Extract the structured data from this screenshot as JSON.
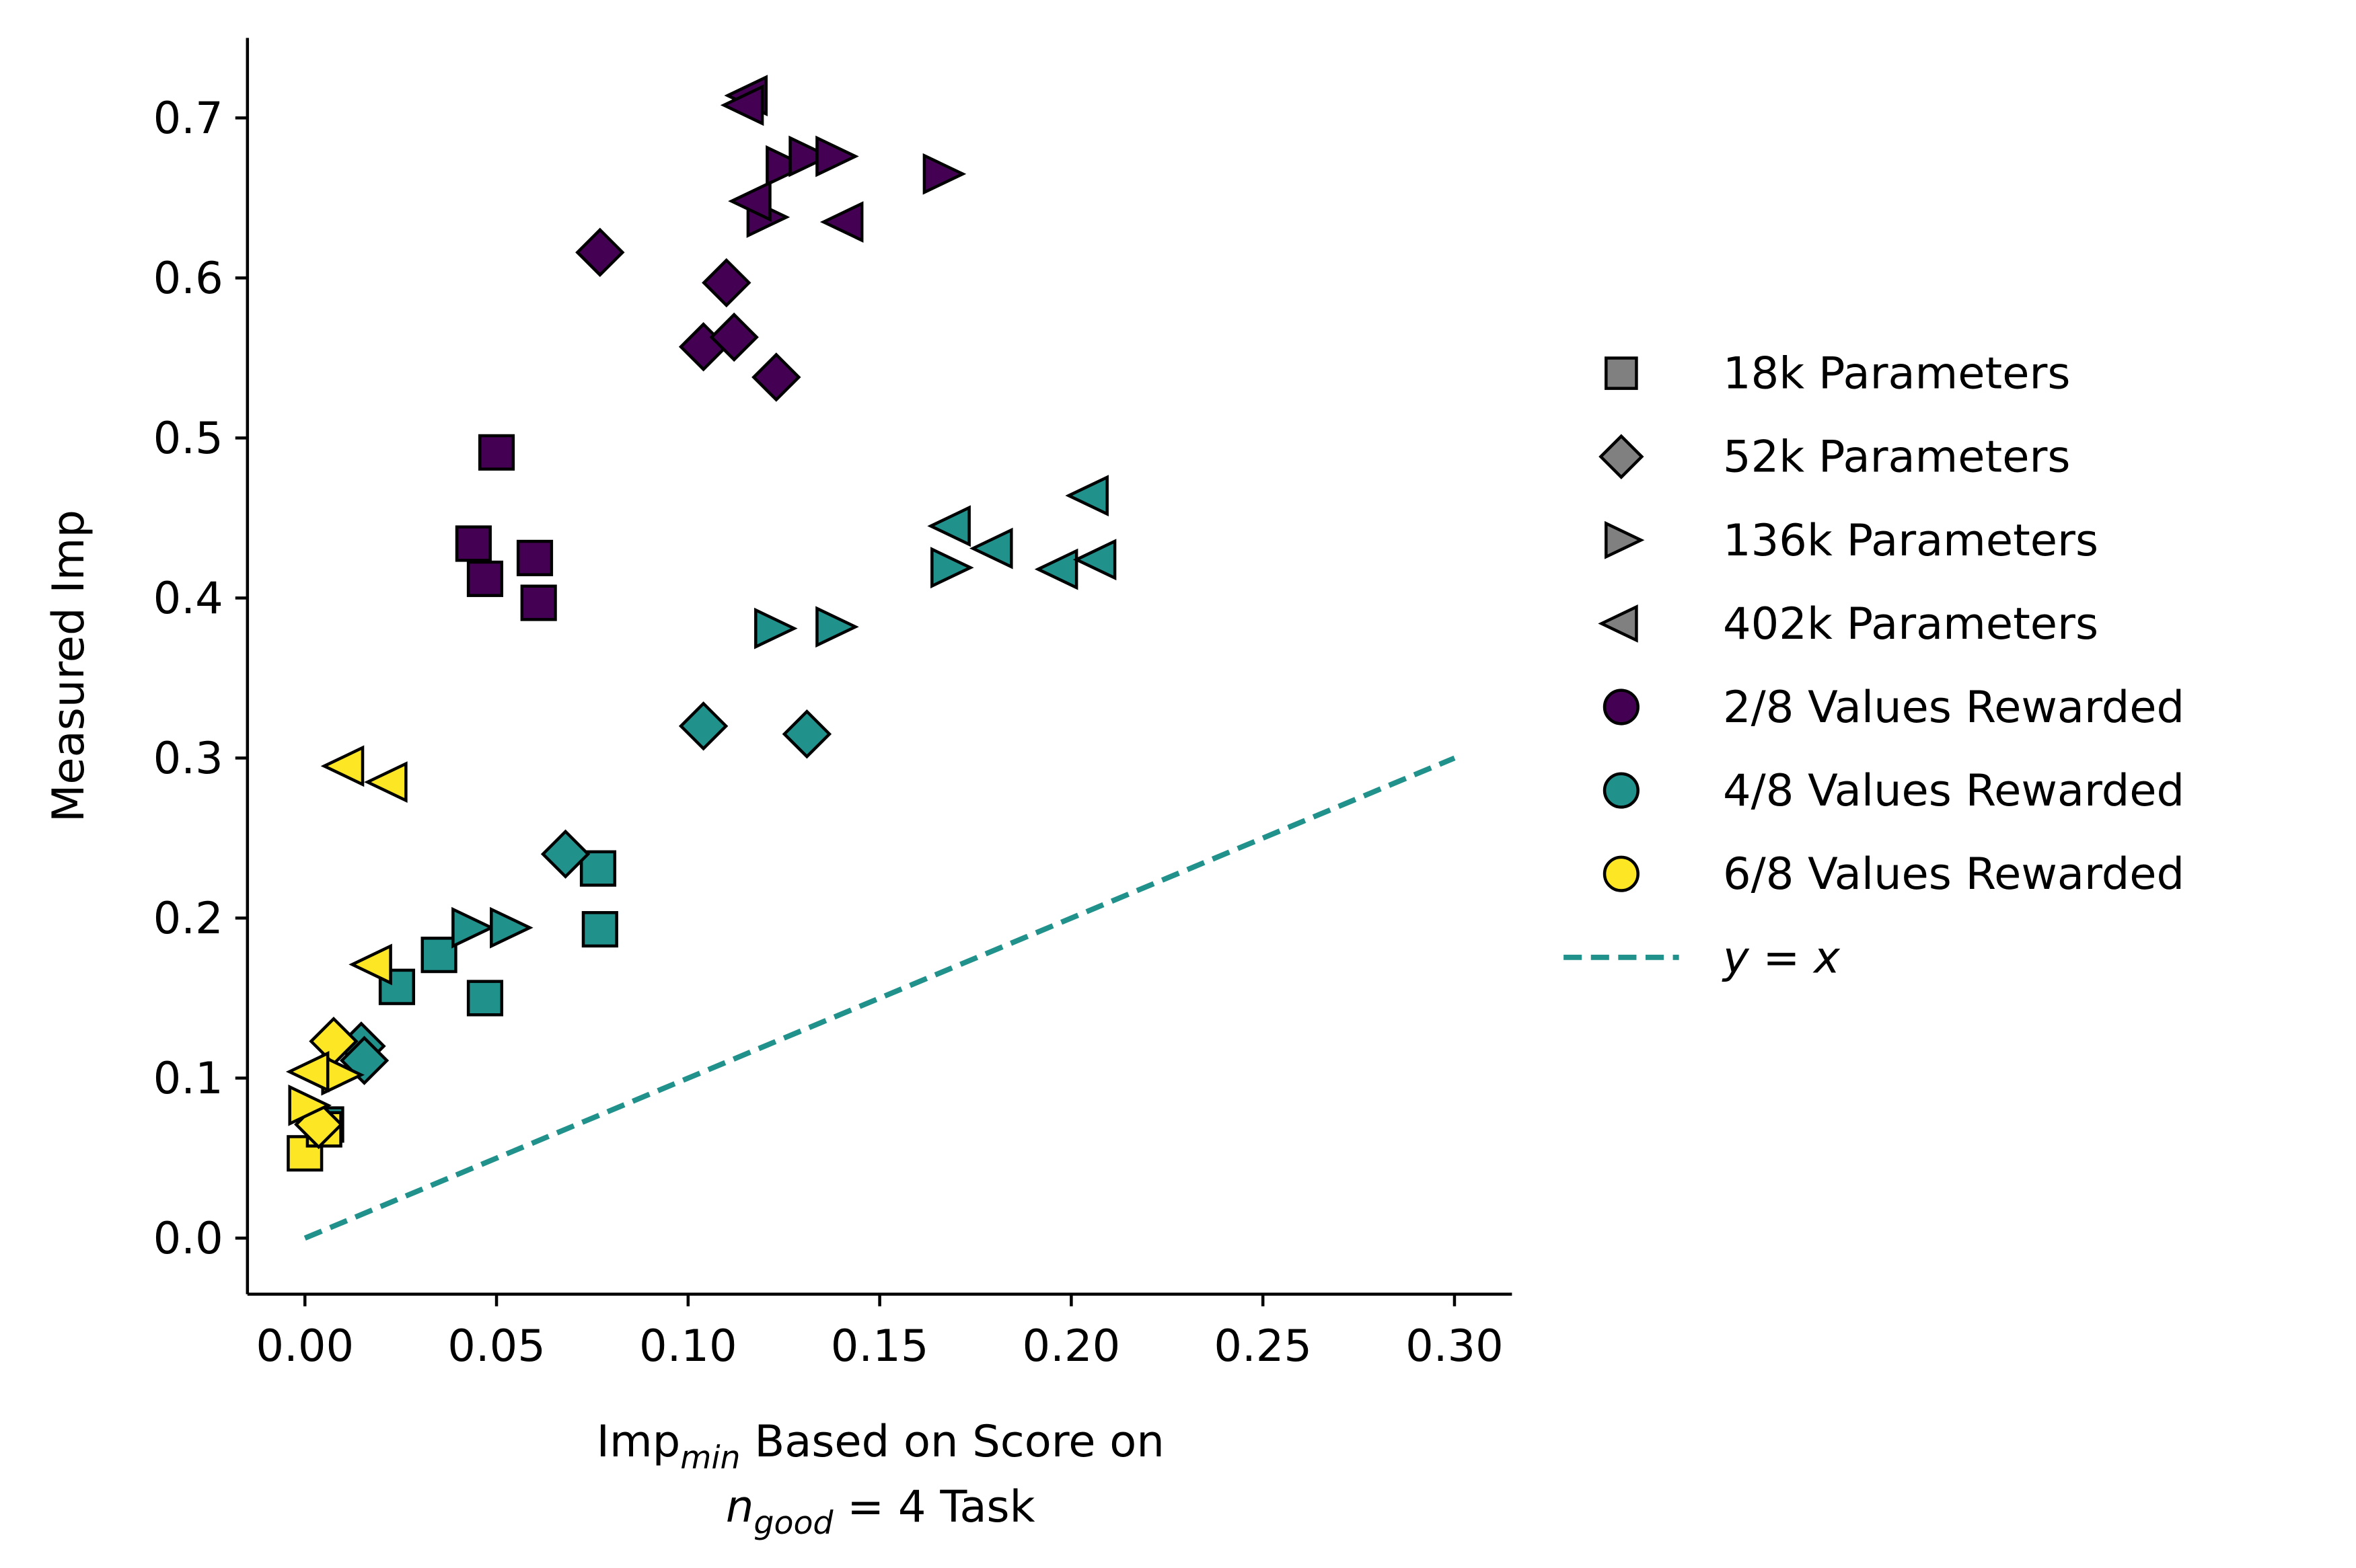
{
  "chart_data": {
    "type": "scatter",
    "ylabel": "Measured Imp",
    "xlabel": {
      "line1": [
        "Imp",
        "min",
        " Based on Score on"
      ],
      "line2": [
        "n",
        "good",
        " = 4 Task"
      ]
    },
    "xlim": [
      -0.015,
      0.315
    ],
    "ylim": [
      -0.035,
      0.75
    ],
    "xticks": [
      {
        "value": 0,
        "label": "0.00"
      },
      0.05,
      {
        "value": 0.1,
        "label": "0.10"
      },
      0.15,
      {
        "value": 0.2,
        "label": "0.20"
      },
      0.25,
      {
        "value": 0.3,
        "label": "0.30"
      }
    ],
    "yticks": [
      {
        "value": 0,
        "label": "0.0"
      },
      0.1,
      0.2,
      0.3,
      0.4,
      0.5,
      0.6,
      0.7
    ],
    "legend": {
      "position": "right",
      "markers": [
        {
          "label": "18k Parameters",
          "marker": "square",
          "color": "#808080"
        },
        {
          "label": "52k Parameters",
          "marker": "diamond",
          "color": "#808080"
        },
        {
          "label": "136k Parameters",
          "marker": "triangle-right",
          "color": "#808080"
        },
        {
          "label": "402k Parameters",
          "marker": "triangle-left",
          "color": "#808080"
        }
      ],
      "colors": [
        {
          "label": "2/8 Values Rewarded",
          "color": "#440154"
        },
        {
          "label": "4/8 Values Rewarded",
          "color": "#21918c"
        },
        {
          "label": "6/8 Values Rewarded",
          "color": "#fde725"
        }
      ]
    },
    "reference_line": {
      "label": [
        "y",
        " = ",
        "x"
      ],
      "x": [
        0,
        0.3
      ],
      "y": [
        0,
        0.3
      ],
      "color": "#21918c",
      "dashed": true
    },
    "series": [
      {
        "marker": "square",
        "color": "#440154",
        "x": [
          0.05,
          0.044,
          0.047,
          0.06,
          0.061
        ],
        "y": [
          0.491,
          0.434,
          0.412,
          0.425,
          0.397
        ]
      },
      {
        "marker": "diamond",
        "color": "#440154",
        "x": [
          0.077,
          0.11,
          0.104,
          0.112,
          0.123
        ],
        "y": [
          0.616,
          0.597,
          0.557,
          0.563,
          0.538
        ]
      },
      {
        "marker": "triangle-right",
        "color": "#440154",
        "x": [
          0.125,
          0.131,
          0.138,
          0.166,
          0.12
        ],
        "y": [
          0.67,
          0.676,
          0.676,
          0.665,
          0.638
        ]
      },
      {
        "marker": "triangle-left",
        "color": "#440154",
        "x": [
          0.116,
          0.115,
          0.117,
          0.141
        ],
        "y": [
          0.714,
          0.708,
          0.648,
          0.635
        ]
      },
      {
        "marker": "square",
        "color": "#21918c",
        "x": [
          0.0765,
          0.077,
          0.035,
          0.024,
          0.047,
          0.0055
        ],
        "y": [
          0.231,
          0.193,
          0.177,
          0.157,
          0.15,
          0.071
        ]
      },
      {
        "marker": "diamond",
        "color": "#21918c",
        "x": [
          0.104,
          0.131,
          0.068,
          0.0147,
          0.0155
        ],
        "y": [
          0.32,
          0.315,
          0.24,
          0.12,
          0.111
        ]
      },
      {
        "marker": "triangle-right",
        "color": "#21918c",
        "x": [
          0.122,
          0.138,
          0.168,
          0.043,
          0.053
        ],
        "y": [
          0.381,
          0.382,
          0.419,
          0.194,
          0.194
        ]
      },
      {
        "marker": "triangle-left",
        "color": "#21918c",
        "x": [
          0.169,
          0.18,
          0.197,
          0.205,
          0.207
        ],
        "y": [
          0.445,
          0.431,
          0.418,
          0.464,
          0.424
        ]
      },
      {
        "marker": "square",
        "color": "#fde725",
        "x": [
          0.0,
          0.005
        ],
        "y": [
          0.053,
          0.068
        ]
      },
      {
        "marker": "diamond",
        "color": "#fde725",
        "x": [
          0.0075,
          0.0036
        ],
        "y": [
          0.123,
          0.071
        ]
      },
      {
        "marker": "triangle-right",
        "color": "#fde725",
        "x": [
          0.0004,
          0.009
        ],
        "y": [
          0.083,
          0.102
        ]
      },
      {
        "marker": "triangle-left",
        "color": "#fde725",
        "x": [
          0.0107,
          0.022,
          0.018,
          0.0016
        ],
        "y": [
          0.295,
          0.285,
          0.171,
          0.104
        ]
      }
    ]
  }
}
